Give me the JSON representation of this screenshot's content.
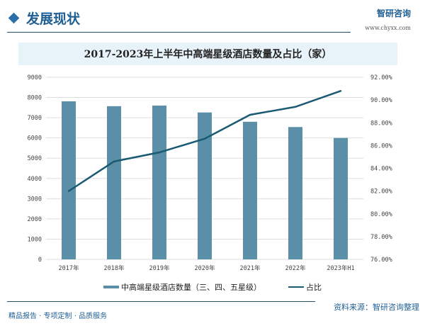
{
  "header": {
    "title": "发展现状",
    "brand_name": "智研咨询",
    "brand_url": "www.chyxx.com"
  },
  "footer": {
    "slogan": "精品报告 · 专项定制 · 品质服务",
    "source": "资料来源：智研咨询整理"
  },
  "chart_data": {
    "type": "bar+line",
    "title": "2017-2023年上半年中高端星级酒店数量及占比（家）",
    "categories": [
      "2017年",
      "2018年",
      "2019年",
      "2020年",
      "2021年",
      "2022年",
      "2023年H1"
    ],
    "series": [
      {
        "name": "中高端星级酒店数量（三、四、五星级）",
        "type": "bar",
        "axis": "left",
        "color": "#5b8fa8",
        "values": [
          7810,
          7570,
          7600,
          7260,
          6800,
          6540,
          6000
        ]
      },
      {
        "name": "占比",
        "type": "line",
        "axis": "right",
        "color": "#1a5a72",
        "values": [
          82.0,
          84.6,
          85.4,
          86.6,
          88.7,
          89.4,
          90.8
        ]
      }
    ],
    "y_left": {
      "range": [
        0,
        9000
      ],
      "ticks": [
        "0",
        "1000",
        "2000",
        "3000",
        "4000",
        "5000",
        "6000",
        "7000",
        "8000",
        "9000"
      ]
    },
    "y_right": {
      "range": [
        76,
        92
      ],
      "ticks": [
        "76.00%",
        "78.00%",
        "80.00%",
        "82.00%",
        "84.00%",
        "86.00%",
        "88.00%",
        "90.00%",
        "92.00%"
      ]
    },
    "grid": true,
    "legend": "bottom"
  }
}
